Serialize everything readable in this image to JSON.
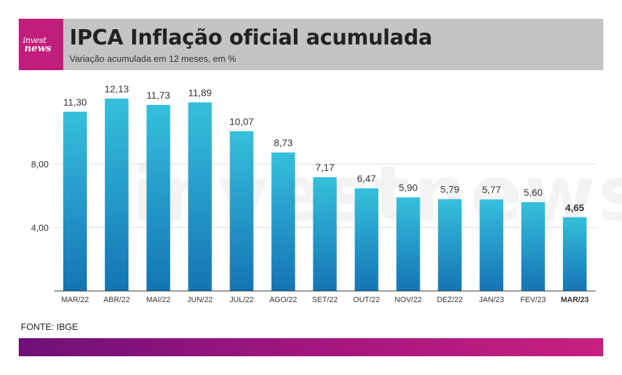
{
  "header": {
    "logo_line1": "invest",
    "logo_line2": "news",
    "title": "IPCA Inflação oficial acumulada",
    "subtitle": "Variação acumulada em 12 meses, em %"
  },
  "watermark": "investnews",
  "source": "FONTE: IBGE",
  "colors": {
    "header_bg": "#c4c4c4",
    "logo_bg": "#c21d7d",
    "bar_top": "#36c0dc",
    "bar_bottom": "#1474b5",
    "footer_start": "#6e1077",
    "footer_end": "#c8207f"
  },
  "chart_data": {
    "type": "bar",
    "categories": [
      "MAR/22",
      "ABR/22",
      "MAI/22",
      "JUN/22",
      "JUL/22",
      "AGO/22",
      "SET/22",
      "OUT/22",
      "NOV/22",
      "DEZ/22",
      "JAN/23",
      "FEV/23",
      "MAR/23"
    ],
    "values": [
      11.3,
      12.13,
      11.73,
      11.89,
      10.07,
      8.73,
      7.17,
      6.47,
      5.9,
      5.79,
      5.77,
      5.6,
      4.65
    ],
    "value_labels": [
      "11,30",
      "12,13",
      "11,73",
      "11,89",
      "10,07",
      "8,73",
      "7,17",
      "6,47",
      "5,90",
      "5,79",
      "5,77",
      "5,60",
      "4,65"
    ],
    "highlight_index": 12,
    "ylim": [
      0,
      13
    ],
    "yticks": [
      4,
      8
    ],
    "ytick_labels": [
      "4,00",
      "8,00"
    ],
    "grid": true,
    "title": "IPCA Inflação oficial acumulada",
    "xlabel": "",
    "ylabel": ""
  }
}
